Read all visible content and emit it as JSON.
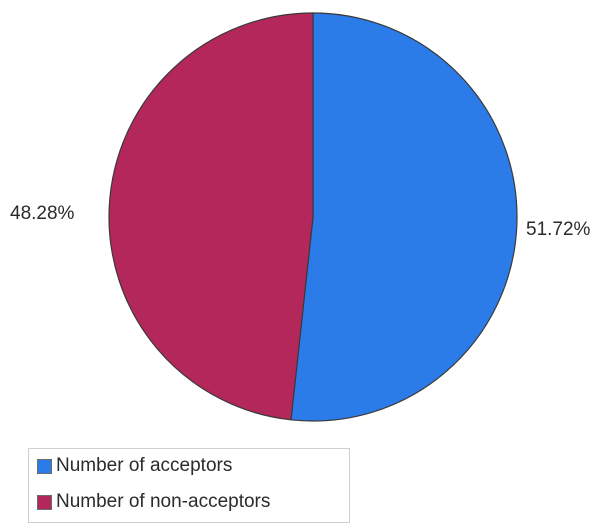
{
  "chart_data": {
    "type": "pie",
    "title": "",
    "slices": [
      {
        "label": "Number of acceptors",
        "value": 51.72,
        "value_label": "51.72%",
        "color": "#2b7ce8"
      },
      {
        "label": "Number of non-acceptors",
        "value": 48.28,
        "value_label": "48.28%",
        "color": "#b3275a"
      }
    ],
    "legend": {
      "placement": "bottom-left",
      "entries": [
        "Number of acceptors",
        "Number of non-acceptors"
      ]
    },
    "start_angle_deg": 0,
    "direction": "clockwise",
    "edge_color": "#3a3a3a"
  }
}
